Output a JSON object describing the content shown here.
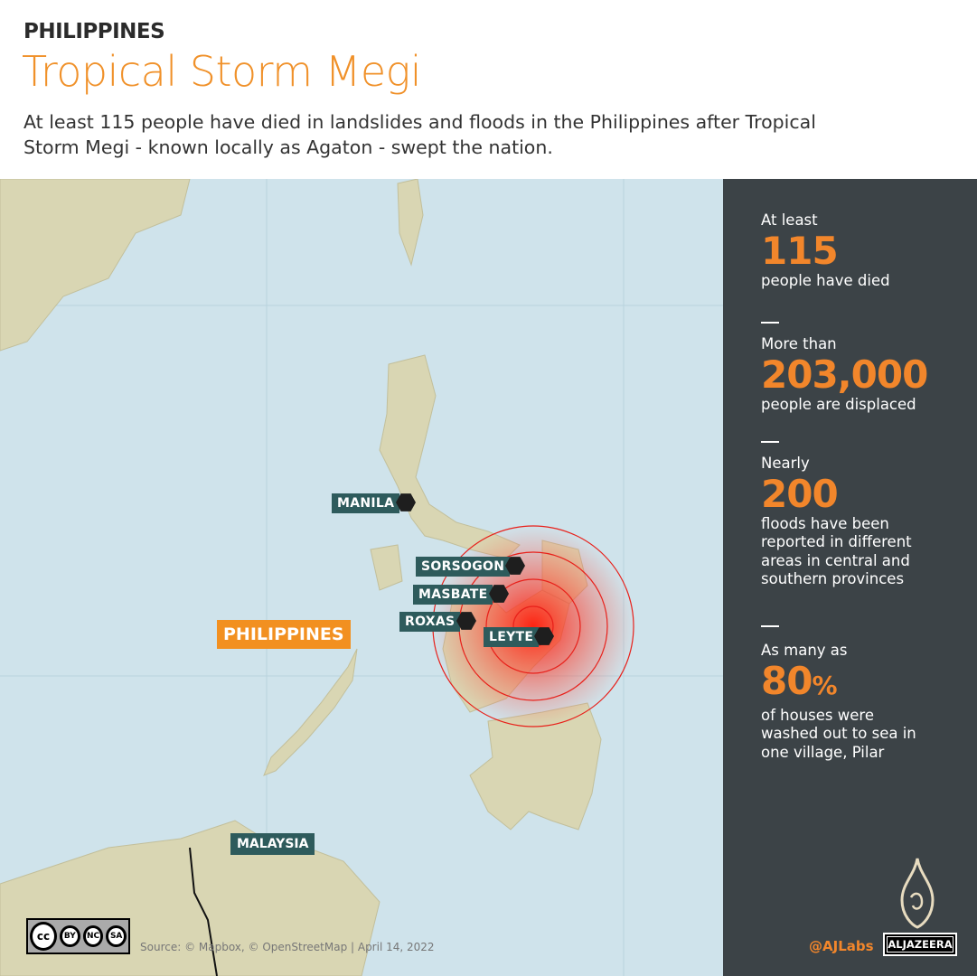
{
  "header": {
    "kicker": "PHILIPPINES",
    "title": "Tropical Storm Megi",
    "subtitle": "At least 115 people have died in landslides and floods in the Philippines after Tropical Storm Megi - known locally as Agaton - swept the nation."
  },
  "map": {
    "country_label": "PHILIPPINES",
    "neighbor_label": "MALAYSIA",
    "places": [
      "MANILA",
      "SORSOGON",
      "MASBATE",
      "ROXAS",
      "LEYTE"
    ],
    "storm_color": "#ff2a1a",
    "source": "Source: © Mapbox, © OpenStreetMap |  April 14, 2022"
  },
  "panel": {
    "stats": [
      {
        "pre": "At least",
        "num": "115",
        "post": "people have died"
      },
      {
        "pre": "More than",
        "num": "203,000",
        "post": "people are displaced"
      },
      {
        "pre": "Nearly",
        "num": "200",
        "post": "floods have been reported in different areas in central and southern provinces"
      },
      {
        "pre": "As many as",
        "num": "80",
        "unit": "%",
        "post": "of houses were washed out to sea in one village, Pilar"
      }
    ]
  },
  "footer": {
    "license": [
      "BY",
      "NC",
      "SA"
    ],
    "license_logo": "cc",
    "handle": "@AJLabs",
    "brand": "ALJAZEERA"
  },
  "colors": {
    "accent": "#f2862b",
    "panel": "#3c4347",
    "label": "#2e5b5c"
  }
}
